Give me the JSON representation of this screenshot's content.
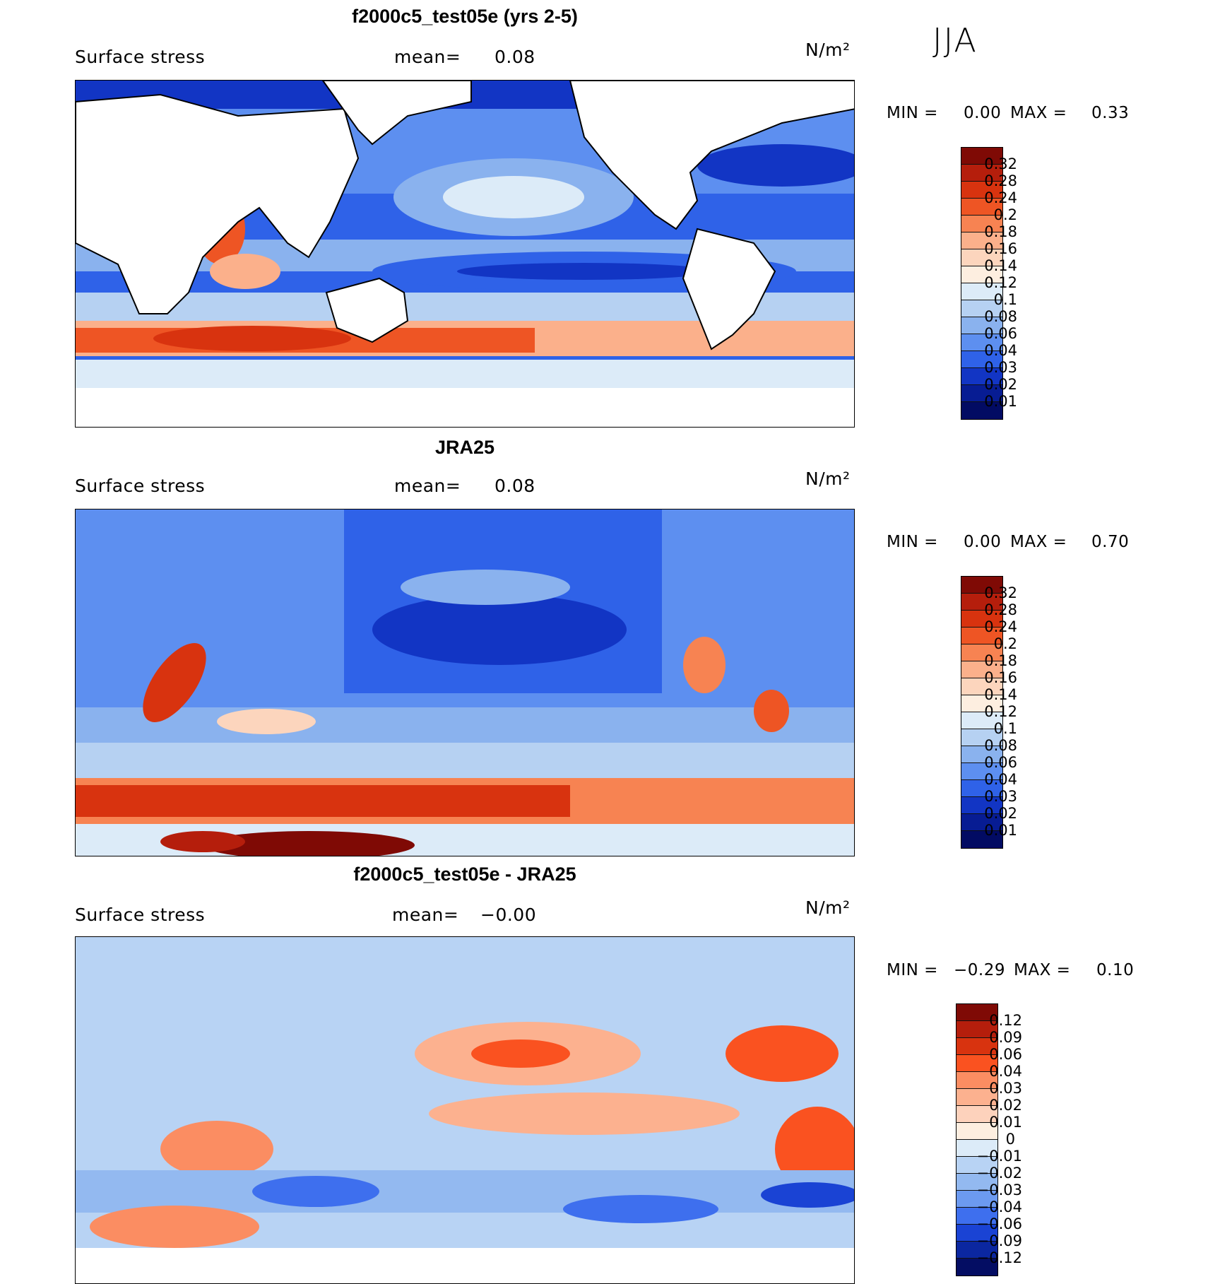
{
  "season": "JJA",
  "units": "N/m²",
  "panels": [
    {
      "title": "f2000c5_test05e (yrs 2-5)",
      "variable": "Surface stress",
      "mean_label": "mean=",
      "mean": "0.08",
      "min_label": "MIN =",
      "min": "0.00",
      "max_label": "MAX =",
      "max": "0.33",
      "ticks": [
        "0.32",
        "0.28",
        "0.24",
        "0.2",
        "0.18",
        "0.16",
        "0.14",
        "0.12",
        "0.1",
        "0.08",
        "0.06",
        "0.04",
        "0.03",
        "0.02",
        "0.01"
      ]
    },
    {
      "title": "JRA25",
      "variable": "Surface stress",
      "mean_label": "mean=",
      "mean": "0.08",
      "min_label": "MIN =",
      "min": "0.00",
      "max_label": "MAX =",
      "max": "0.70",
      "ticks": [
        "0.32",
        "0.28",
        "0.24",
        "0.2",
        "0.18",
        "0.16",
        "0.14",
        "0.12",
        "0.1",
        "0.08",
        "0.06",
        "0.04",
        "0.03",
        "0.02",
        "0.01"
      ]
    },
    {
      "title": "f2000c5_test05e - JRA25",
      "variable": "Surface stress",
      "mean_label": "mean=",
      "mean": "−0.00",
      "min_label": "MIN =",
      "min": "−0.29",
      "max_label": "MAX =",
      "max": "0.10",
      "ticks": [
        "0.12",
        "0.09",
        "0.06",
        "0.04",
        "0.03",
        "0.02",
        "0.01",
        "0",
        "−0.01",
        "−0.02",
        "−0.03",
        "−0.04",
        "−0.06",
        "−0.09",
        "−0.12"
      ]
    }
  ],
  "colors": {
    "abs_scale": [
      "#7f0a05",
      "#b51e0c",
      "#d8330f",
      "#ee5524",
      "#f78352",
      "#fbb08b",
      "#fcd5bd",
      "#fdeee0",
      "#dcebf8",
      "#b6d1f2",
      "#8ab2ee",
      "#5d8ff0",
      "#2f62e8",
      "#1235c4",
      "#071c93",
      "#020b63"
    ],
    "diff_scale": [
      "#7f0a05",
      "#b51e0c",
      "#d8330f",
      "#fa5220",
      "#fb8d62",
      "#fcb18f",
      "#fdd2bc",
      "#fdeee0",
      "#dcebf8",
      "#b8d3f4",
      "#93b9f0",
      "#6c9af0",
      "#3e6fee",
      "#1a43d4",
      "#0b27a0",
      "#040d63"
    ],
    "land": "#ffffff",
    "coast": "#000000"
  }
}
